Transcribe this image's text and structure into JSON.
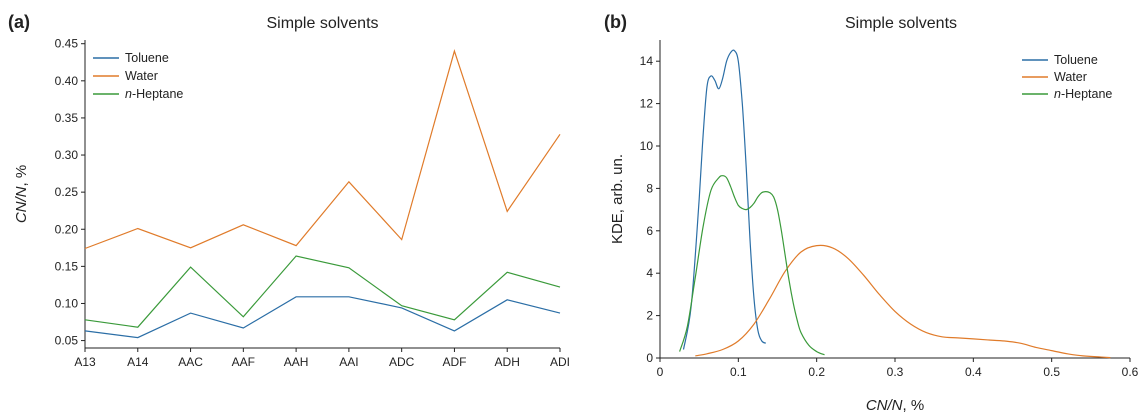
{
  "chart_data": [
    {
      "panel": "(a)",
      "type": "line",
      "title": "Simple solvents",
      "xlabel": "",
      "ylabel": "CN/N, %",
      "ylabel_parts": {
        "italic": "CN/N",
        "rest": ", %"
      },
      "categories": [
        "A13",
        "A14",
        "AAC",
        "AAF",
        "AAH",
        "AAI",
        "ADC",
        "ADF",
        "ADH",
        "ADI"
      ],
      "ylim": [
        0.04,
        0.455
      ],
      "yticks": [
        0.05,
        0.1,
        0.15,
        0.2,
        0.25,
        0.3,
        0.35,
        0.4,
        0.45
      ],
      "ytick_labels": [
        "0.05",
        "0.10",
        "0.15",
        "0.20",
        "0.25",
        "0.30",
        "0.35",
        "0.40",
        "0.45"
      ],
      "legend_position": "top-left",
      "grid": false,
      "series": [
        {
          "name": "Toluene",
          "name_parts": {
            "italic": "",
            "rest": "Toluene"
          },
          "color": "#2b6ea6",
          "values": [
            0.063,
            0.054,
            0.087,
            0.067,
            0.109,
            0.109,
            0.094,
            0.063,
            0.105,
            0.087
          ]
        },
        {
          "name": "Water",
          "name_parts": {
            "italic": "",
            "rest": "Water"
          },
          "color": "#e07b2a",
          "values": [
            0.174,
            0.201,
            0.175,
            0.206,
            0.178,
            0.264,
            0.186,
            0.44,
            0.224,
            0.328
          ]
        },
        {
          "name": "n-Heptane",
          "name_parts": {
            "italic": "n",
            "rest": "-Heptane"
          },
          "color": "#3a9a3a",
          "values": [
            0.078,
            0.068,
            0.149,
            0.082,
            0.164,
            0.148,
            0.097,
            0.078,
            0.142,
            0.122
          ]
        }
      ]
    },
    {
      "panel": "(b)",
      "type": "line",
      "title": "Simple solvents",
      "xlabel": "CN/N, %",
      "xlabel_parts": {
        "italic": "CN/N",
        "rest": ", %"
      },
      "ylabel": "KDE, arb. un.",
      "xlim": [
        0,
        0.6
      ],
      "ylim": [
        0,
        15
      ],
      "xticks": [
        0,
        0.1,
        0.2,
        0.3,
        0.4,
        0.5,
        0.6
      ],
      "xtick_labels": [
        "0",
        "0.1",
        "0.2",
        "0.3",
        "0.4",
        "0.5",
        "0.6"
      ],
      "yticks": [
        0,
        2,
        4,
        6,
        8,
        10,
        12,
        14
      ],
      "ytick_labels": [
        "0",
        "2",
        "4",
        "6",
        "8",
        "10",
        "12",
        "14"
      ],
      "legend_position": "top-right",
      "grid": false,
      "series": [
        {
          "name": "Toluene",
          "name_parts": {
            "italic": "",
            "rest": "Toluene"
          },
          "color": "#2b6ea6",
          "x": [
            0.03,
            0.04,
            0.05,
            0.055,
            0.06,
            0.065,
            0.07,
            0.075,
            0.08,
            0.085,
            0.09,
            0.095,
            0.1,
            0.105,
            0.11,
            0.115,
            0.12,
            0.125,
            0.13,
            0.135
          ],
          "y": [
            0.4,
            2.5,
            7.5,
            10.5,
            12.8,
            13.3,
            13.1,
            12.7,
            13.2,
            14.0,
            14.4,
            14.5,
            14.0,
            12.0,
            9.0,
            5.5,
            2.8,
            1.3,
            0.8,
            0.7
          ]
        },
        {
          "name": "Water",
          "name_parts": {
            "italic": "",
            "rest": "Water"
          },
          "color": "#e07b2a",
          "x": [
            0.045,
            0.06,
            0.08,
            0.1,
            0.12,
            0.14,
            0.16,
            0.18,
            0.2,
            0.22,
            0.24,
            0.26,
            0.28,
            0.3,
            0.32,
            0.34,
            0.36,
            0.38,
            0.4,
            0.42,
            0.44,
            0.46,
            0.48,
            0.5,
            0.52,
            0.54,
            0.56,
            0.575
          ],
          "y": [
            0.1,
            0.2,
            0.4,
            0.8,
            1.6,
            2.8,
            4.1,
            5.0,
            5.3,
            5.2,
            4.7,
            3.9,
            3.0,
            2.2,
            1.6,
            1.2,
            1.0,
            0.95,
            0.9,
            0.85,
            0.8,
            0.7,
            0.5,
            0.35,
            0.2,
            0.1,
            0.05,
            0.02
          ]
        },
        {
          "name": "n-Heptane",
          "name_parts": {
            "italic": "n",
            "rest": "-Heptane"
          },
          "color": "#3a9a3a",
          "x": [
            0.025,
            0.035,
            0.045,
            0.055,
            0.065,
            0.075,
            0.08,
            0.085,
            0.09,
            0.095,
            0.1,
            0.105,
            0.11,
            0.115,
            0.12,
            0.125,
            0.13,
            0.135,
            0.14,
            0.145,
            0.15,
            0.155,
            0.16,
            0.165,
            0.17,
            0.175,
            0.18,
            0.19,
            0.2,
            0.21
          ],
          "y": [
            0.3,
            1.5,
            3.8,
            6.2,
            7.9,
            8.5,
            8.6,
            8.5,
            8.1,
            7.6,
            7.2,
            7.05,
            7.0,
            7.1,
            7.3,
            7.6,
            7.8,
            7.85,
            7.8,
            7.6,
            7.0,
            6.0,
            4.8,
            3.6,
            2.6,
            1.8,
            1.2,
            0.6,
            0.3,
            0.15
          ]
        }
      ]
    }
  ]
}
